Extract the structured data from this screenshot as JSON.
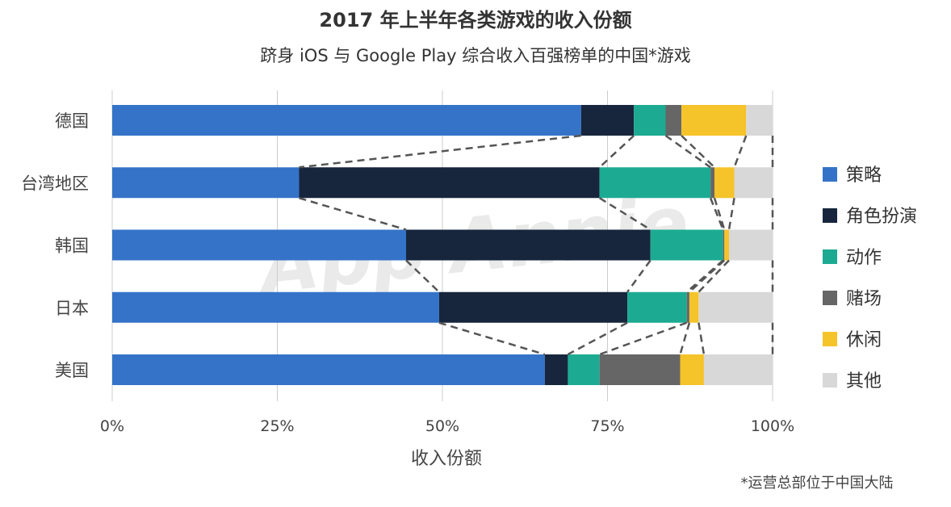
{
  "chart_data": {
    "type": "bar",
    "orientation": "horizontal",
    "stacked": true,
    "title": "2017 年上半年各类游戏的收入份额",
    "subtitle": "跻身 iOS 与 Google Play 综合收入百强榜单的中国*游戏",
    "xlabel": "收入份额",
    "ylabel": "",
    "xlim": [
      0,
      100
    ],
    "x_ticks": [
      "0%",
      "25%",
      "50%",
      "75%",
      "100%"
    ],
    "grid": "vertical",
    "legend_position": "right",
    "categories": [
      "德国",
      "台湾地区",
      "韩国",
      "日本",
      "美国"
    ],
    "series": [
      {
        "name": "策略",
        "color": "#3573c8",
        "values": [
          71.0,
          28.3,
          44.5,
          49.5,
          65.5
        ]
      },
      {
        "name": "角色扮演",
        "color": "#17263d",
        "values": [
          8.0,
          45.5,
          37.0,
          28.5,
          3.5
        ]
      },
      {
        "name": "动作",
        "color": "#1cab92",
        "values": [
          4.8,
          16.8,
          11.0,
          9.0,
          4.8
        ]
      },
      {
        "name": "赌场",
        "color": "#666666",
        "values": [
          2.4,
          0.6,
          0.2,
          0.4,
          12.2
        ]
      },
      {
        "name": "休闲",
        "color": "#f5c32a",
        "values": [
          9.8,
          3.0,
          0.7,
          1.4,
          3.6
        ]
      },
      {
        "name": "其他",
        "color": "#d8d8d8",
        "values": [
          4.0,
          5.8,
          6.6,
          11.2,
          10.4
        ]
      }
    ],
    "footnote": "*运营总部位于中国大陆",
    "watermark": "App Annie"
  }
}
